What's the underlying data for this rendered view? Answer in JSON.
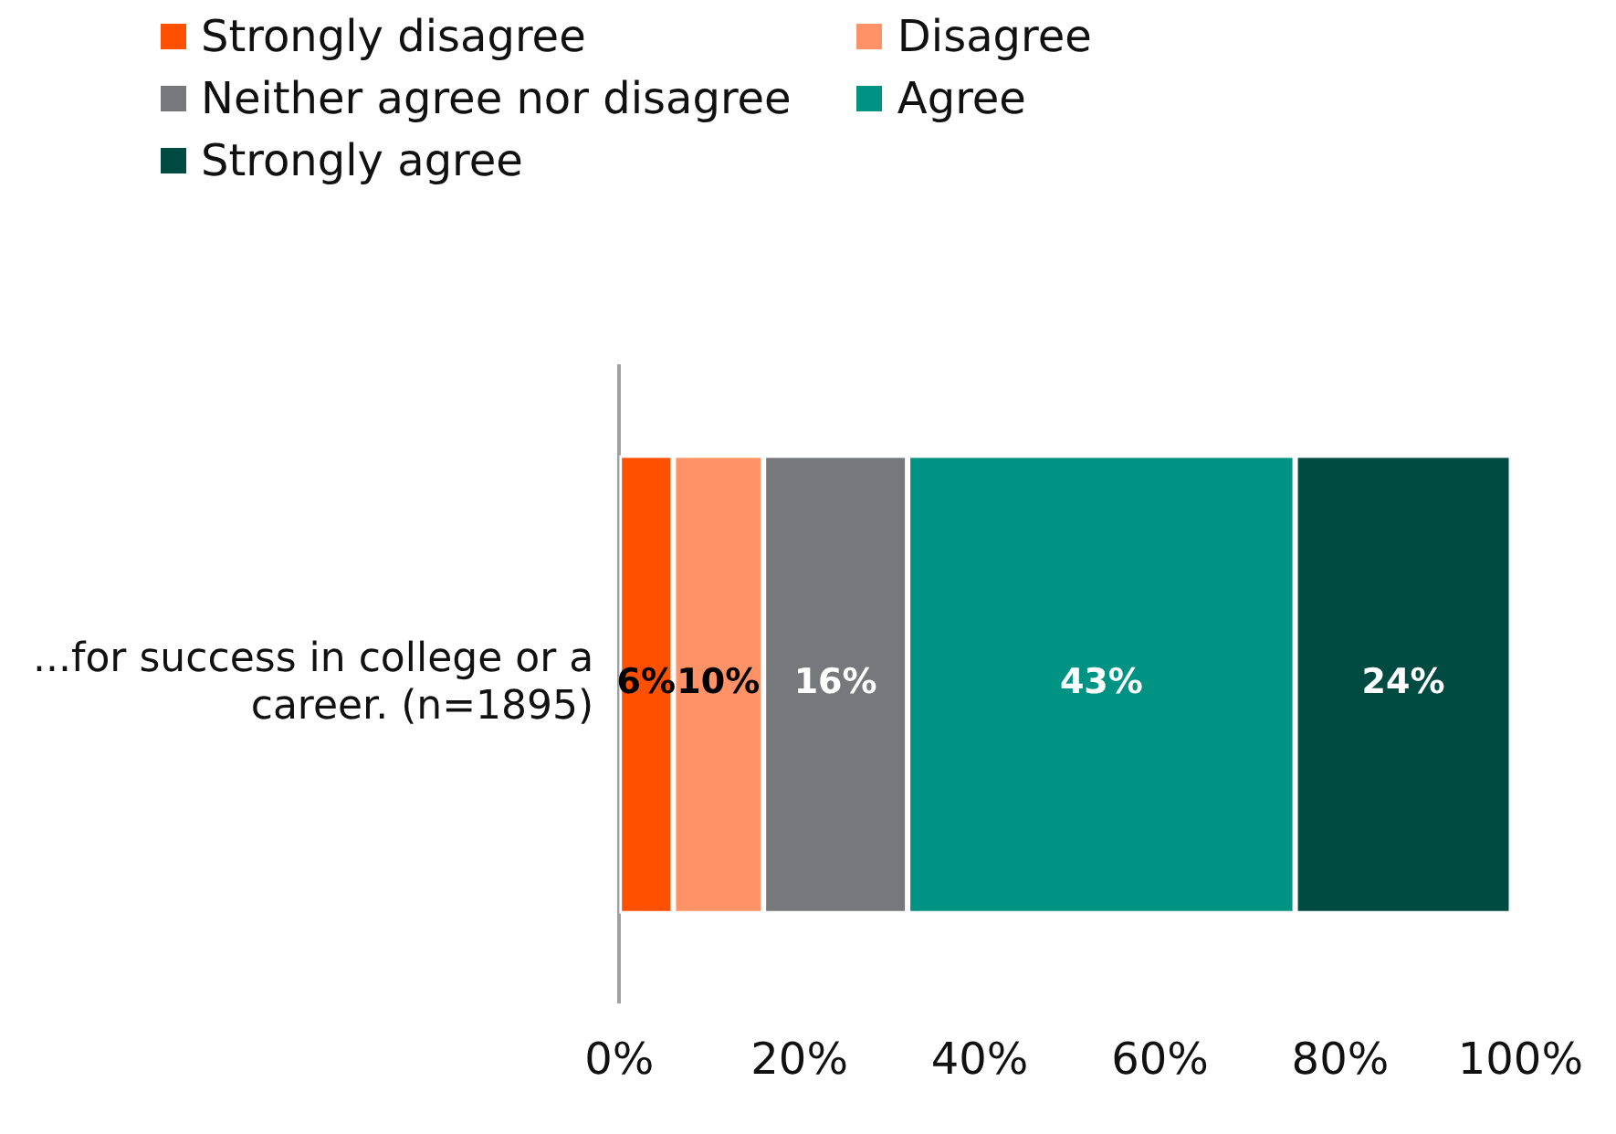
{
  "chart_data": {
    "type": "bar",
    "orientation": "horizontal",
    "stacked": true,
    "categories": [
      "...for success in college or a career. (n=1895)"
    ],
    "series": [
      {
        "name": "Strongly disagree",
        "color": "#ff5000",
        "values": [
          6
        ],
        "value_labels": [
          "6%"
        ]
      },
      {
        "name": "Disagree",
        "color": "#ff9266",
        "values": [
          10
        ],
        "value_labels": [
          "10%"
        ]
      },
      {
        "name": "Neither agree nor disagree",
        "color": "#77787b",
        "values": [
          16
        ],
        "value_labels": [
          "16%"
        ]
      },
      {
        "name": "Agree",
        "color": "#009383",
        "values": [
          43
        ],
        "value_labels": [
          "43%"
        ]
      },
      {
        "name": "Strongly agree",
        "color": "#004b41",
        "values": [
          24
        ],
        "value_labels": [
          "24%"
        ]
      }
    ],
    "xlim": [
      0,
      100
    ],
    "xticks": [
      {
        "value": 0,
        "label": "0%"
      },
      {
        "value": 20,
        "label": "20%"
      },
      {
        "value": 40,
        "label": "40%"
      },
      {
        "value": 60,
        "label": "60%"
      },
      {
        "value": 80,
        "label": "80%"
      },
      {
        "value": 100,
        "label": "100%"
      }
    ],
    "grid": false,
    "legend": "top"
  }
}
